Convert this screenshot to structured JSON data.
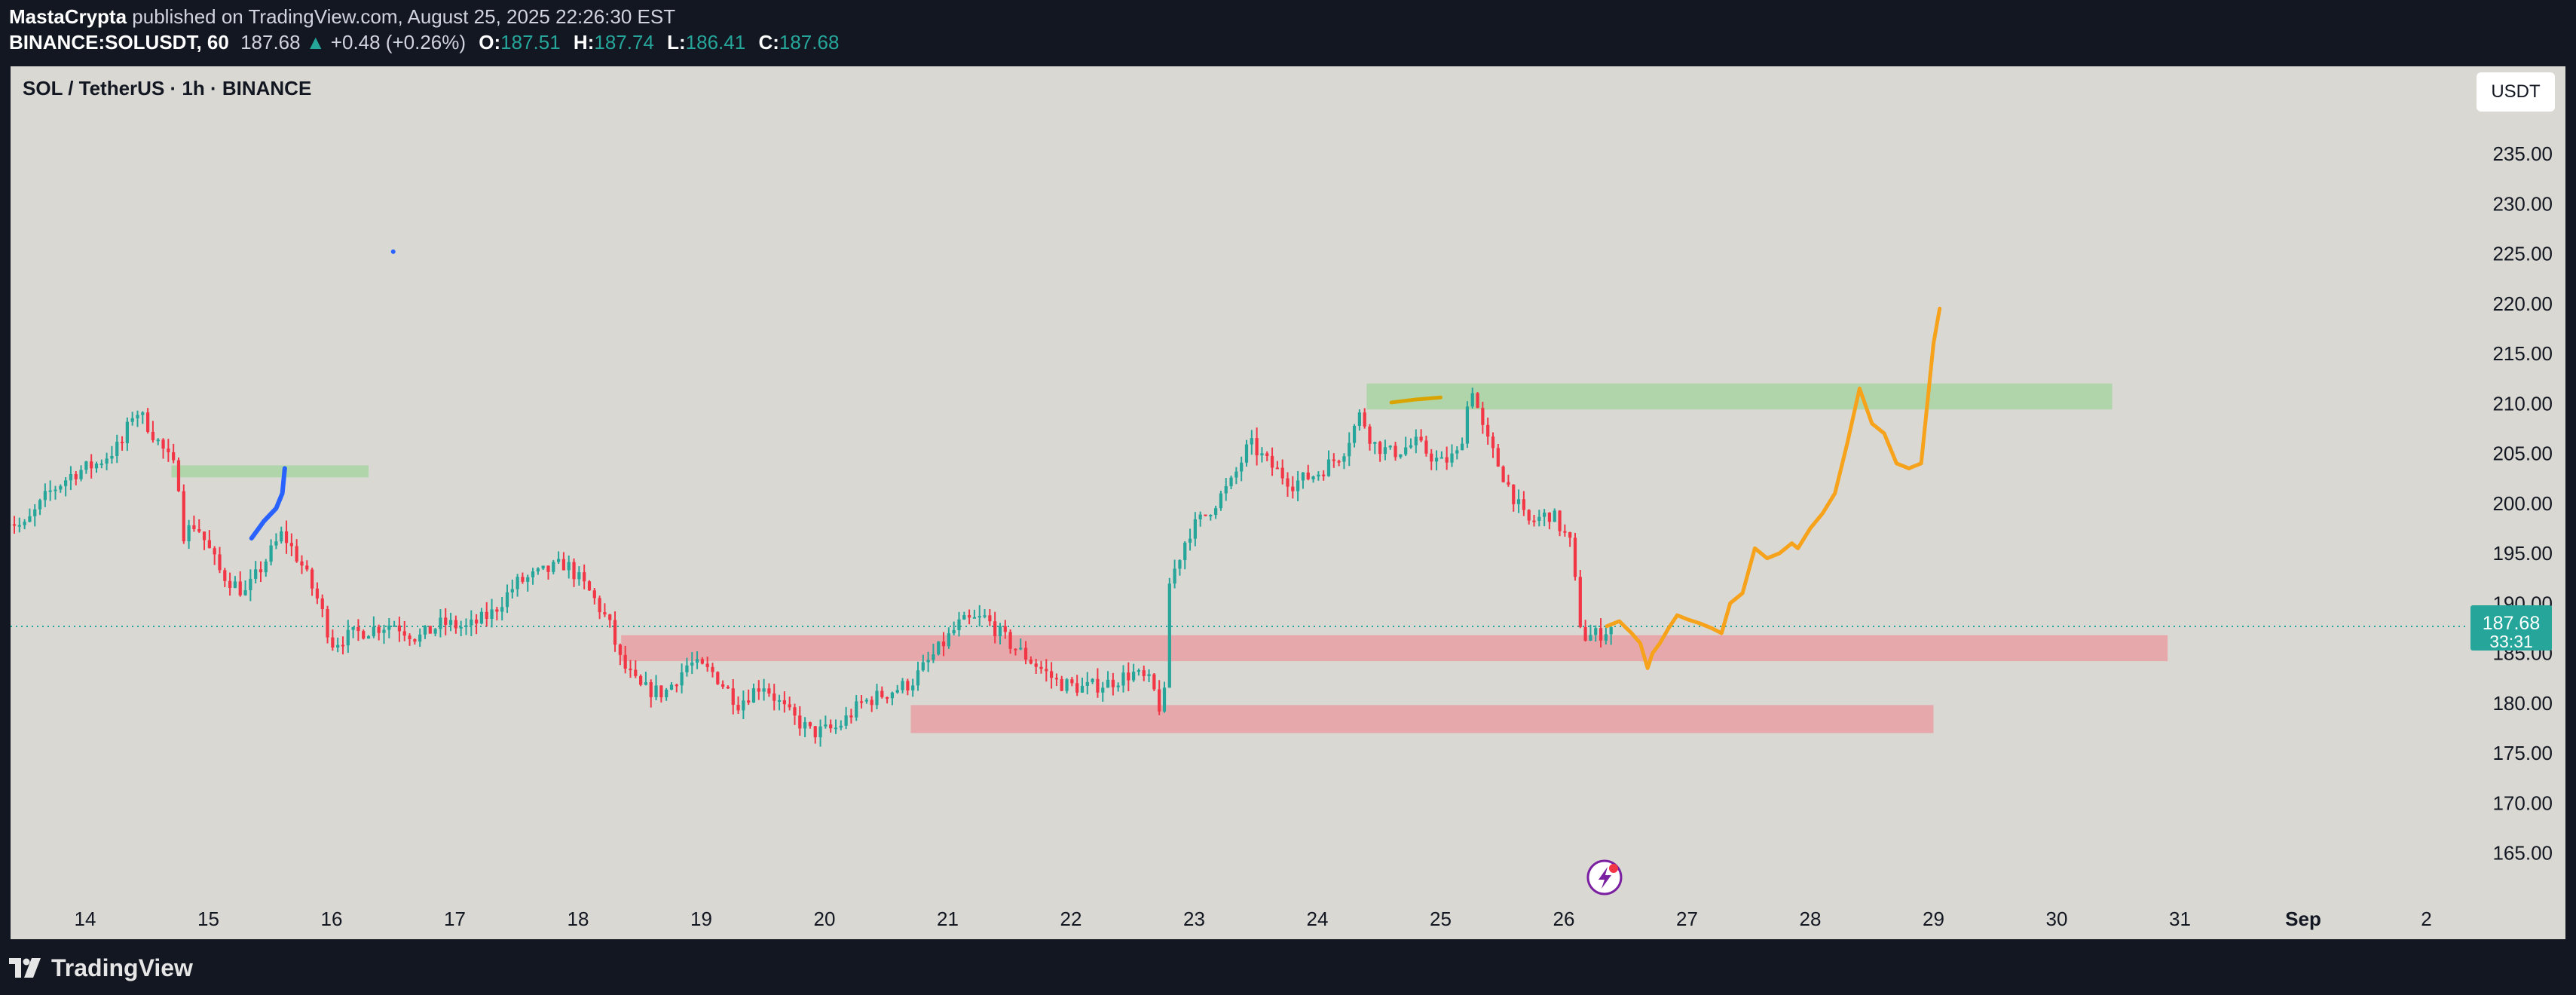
{
  "header": {
    "author": "MastaCrypta",
    "published_text": "published on TradingView.com, August 25, 2025 22:26:30 EST",
    "symbol_interval": "BINANCE:SOLUSDT, 60",
    "last_price": "187.68",
    "change_arrow": "▲",
    "change": "+0.48 (+0.26%)",
    "open_label": "O:",
    "open": "187.51",
    "high_label": "H:",
    "high": "187.74",
    "low_label": "L:",
    "low": "186.41",
    "close_label": "C:",
    "close": "187.68"
  },
  "chart_title": "SOL / TetherUS · 1h · BINANCE",
  "currency_button": "USDT",
  "price_badge": {
    "price": "187.68",
    "countdown": "33:31"
  },
  "footer": {
    "brand": "TradingView"
  },
  "colors": {
    "background": "#d9d8d3",
    "frame": "#131722",
    "up": "#26a69a",
    "down": "#f23645",
    "forecast": "#f7a21b",
    "blue_path": "#2962ff",
    "support_zone": "#e8a0a3",
    "resistance_zone": "#a8d5a3"
  },
  "chart_data": {
    "type": "candlestick",
    "title": "SOL / TetherUS · 1h · BINANCE",
    "ylim": [
      161,
      243
    ],
    "xlim": [
      13.3,
      33.0
    ],
    "y_ticks": [
      "165.00",
      "170.00",
      "175.00",
      "180.00",
      "185.00",
      "190.00",
      "195.00",
      "200.00",
      "205.00",
      "210.00",
      "215.00",
      "220.00",
      "225.00",
      "230.00",
      "235.00"
    ],
    "y_tick_values": [
      165,
      170,
      175,
      180,
      185,
      190,
      195,
      200,
      205,
      210,
      215,
      220,
      225,
      230,
      235
    ],
    "x_ticks": [
      "14",
      "15",
      "16",
      "17",
      "18",
      "19",
      "20",
      "21",
      "22",
      "23",
      "24",
      "25",
      "26",
      "27",
      "28",
      "29",
      "30",
      "31",
      "Sep",
      "2"
    ],
    "x_tick_values": [
      14,
      15,
      16,
      17,
      18,
      19,
      20,
      21,
      22,
      23,
      24,
      25,
      26,
      27,
      28,
      29,
      30,
      31,
      32,
      33
    ],
    "current_price": 187.68,
    "price_path": [
      [
        13.3,
        199
      ],
      [
        13.5,
        197.5
      ],
      [
        13.7,
        201
      ],
      [
        13.9,
        203
      ],
      [
        14.1,
        204
      ],
      [
        14.3,
        206
      ],
      [
        14.4,
        209.5
      ],
      [
        14.5,
        208
      ],
      [
        14.6,
        206
      ],
      [
        14.75,
        203
      ],
      [
        14.8,
        197
      ],
      [
        14.9,
        198
      ],
      [
        15.1,
        193
      ],
      [
        15.3,
        191
      ],
      [
        15.5,
        195
      ],
      [
        15.6,
        197
      ],
      [
        15.75,
        194
      ],
      [
        15.9,
        190
      ],
      [
        16.0,
        186
      ],
      [
        16.2,
        187
      ],
      [
        16.5,
        188
      ],
      [
        16.7,
        186.5
      ],
      [
        16.9,
        188
      ],
      [
        17.1,
        187.5
      ],
      [
        17.3,
        189
      ],
      [
        17.5,
        192
      ],
      [
        17.7,
        193
      ],
      [
        17.9,
        194
      ],
      [
        18.1,
        191
      ],
      [
        18.25,
        188
      ],
      [
        18.35,
        184
      ],
      [
        18.5,
        181.5
      ],
      [
        18.7,
        181
      ],
      [
        18.9,
        184
      ],
      [
        19.1,
        183
      ],
      [
        19.3,
        180
      ],
      [
        19.5,
        182
      ],
      [
        19.7,
        179
      ],
      [
        19.9,
        177
      ],
      [
        20.1,
        177.5
      ],
      [
        20.3,
        180
      ],
      [
        20.5,
        181
      ],
      [
        20.7,
        182
      ],
      [
        20.9,
        185
      ],
      [
        21.1,
        188
      ],
      [
        21.3,
        188.5
      ],
      [
        21.5,
        186
      ],
      [
        21.7,
        184
      ],
      [
        21.9,
        182
      ],
      [
        22.1,
        181.5
      ],
      [
        22.3,
        182
      ],
      [
        22.5,
        183
      ],
      [
        22.65,
        182
      ],
      [
        22.75,
        178.5
      ],
      [
        22.8,
        192
      ],
      [
        22.95,
        197
      ],
      [
        23.1,
        199
      ],
      [
        23.3,
        202
      ],
      [
        23.45,
        206
      ],
      [
        23.6,
        204
      ],
      [
        23.8,
        202
      ],
      [
        24.0,
        203
      ],
      [
        24.2,
        205
      ],
      [
        24.35,
        209
      ],
      [
        24.45,
        206
      ],
      [
        24.6,
        205
      ],
      [
        24.8,
        206
      ],
      [
        25.0,
        204
      ],
      [
        25.15,
        205
      ],
      [
        25.25,
        212
      ],
      [
        25.35,
        207
      ],
      [
        25.5,
        203
      ],
      [
        25.7,
        198
      ],
      [
        25.9,
        199
      ],
      [
        26.05,
        196
      ],
      [
        26.15,
        186.5
      ],
      [
        26.3,
        187
      ],
      [
        26.4,
        187.68
      ]
    ],
    "forecast_path": [
      [
        26.35,
        187.7
      ],
      [
        26.45,
        188.2
      ],
      [
        26.55,
        187.0
      ],
      [
        26.62,
        186.0
      ],
      [
        26.68,
        183.5
      ],
      [
        26.72,
        185.0
      ],
      [
        26.78,
        186.0
      ],
      [
        26.85,
        187.5
      ],
      [
        26.92,
        188.8
      ],
      [
        27.0,
        188.4
      ],
      [
        27.1,
        188.0
      ],
      [
        27.2,
        187.5
      ],
      [
        27.28,
        187.0
      ],
      [
        27.35,
        190.0
      ],
      [
        27.45,
        191.0
      ],
      [
        27.55,
        195.5
      ],
      [
        27.65,
        194.5
      ],
      [
        27.75,
        195.0
      ],
      [
        27.85,
        196.0
      ],
      [
        27.9,
        195.5
      ],
      [
        28.0,
        197.5
      ],
      [
        28.1,
        199.0
      ],
      [
        28.2,
        201.0
      ],
      [
        28.3,
        206.0
      ],
      [
        28.4,
        211.5
      ],
      [
        28.5,
        208.0
      ],
      [
        28.6,
        207.0
      ],
      [
        28.7,
        204.0
      ],
      [
        28.8,
        203.5
      ],
      [
        28.9,
        204.0
      ],
      [
        28.95,
        210.0
      ],
      [
        29.0,
        216.0
      ],
      [
        29.05,
        219.5
      ]
    ],
    "blue_path": [
      [
        15.35,
        196.5
      ],
      [
        15.45,
        198.2
      ],
      [
        15.55,
        199.5
      ],
      [
        15.6,
        201.0
      ],
      [
        15.62,
        203.5
      ]
    ],
    "blue_dot": [
      16.5,
      225.2
    ],
    "yellow_mark": [
      [
        24.6,
        210.1
      ],
      [
        24.8,
        210.4
      ],
      [
        25.0,
        210.6
      ]
    ],
    "zones": [
      {
        "type": "resistance",
        "x0": 14.7,
        "x1": 16.3,
        "y0": 202.6,
        "y1": 203.8
      },
      {
        "type": "resistance",
        "x0": 24.4,
        "x1": 30.45,
        "y0": 209.4,
        "y1": 212.0
      },
      {
        "type": "support",
        "x0": 18.35,
        "x1": 30.9,
        "y0": 184.2,
        "y1": 186.8
      },
      {
        "type": "support",
        "x0": 20.7,
        "x1": 29.0,
        "y0": 177.0,
        "y1": 179.8
      }
    ]
  }
}
